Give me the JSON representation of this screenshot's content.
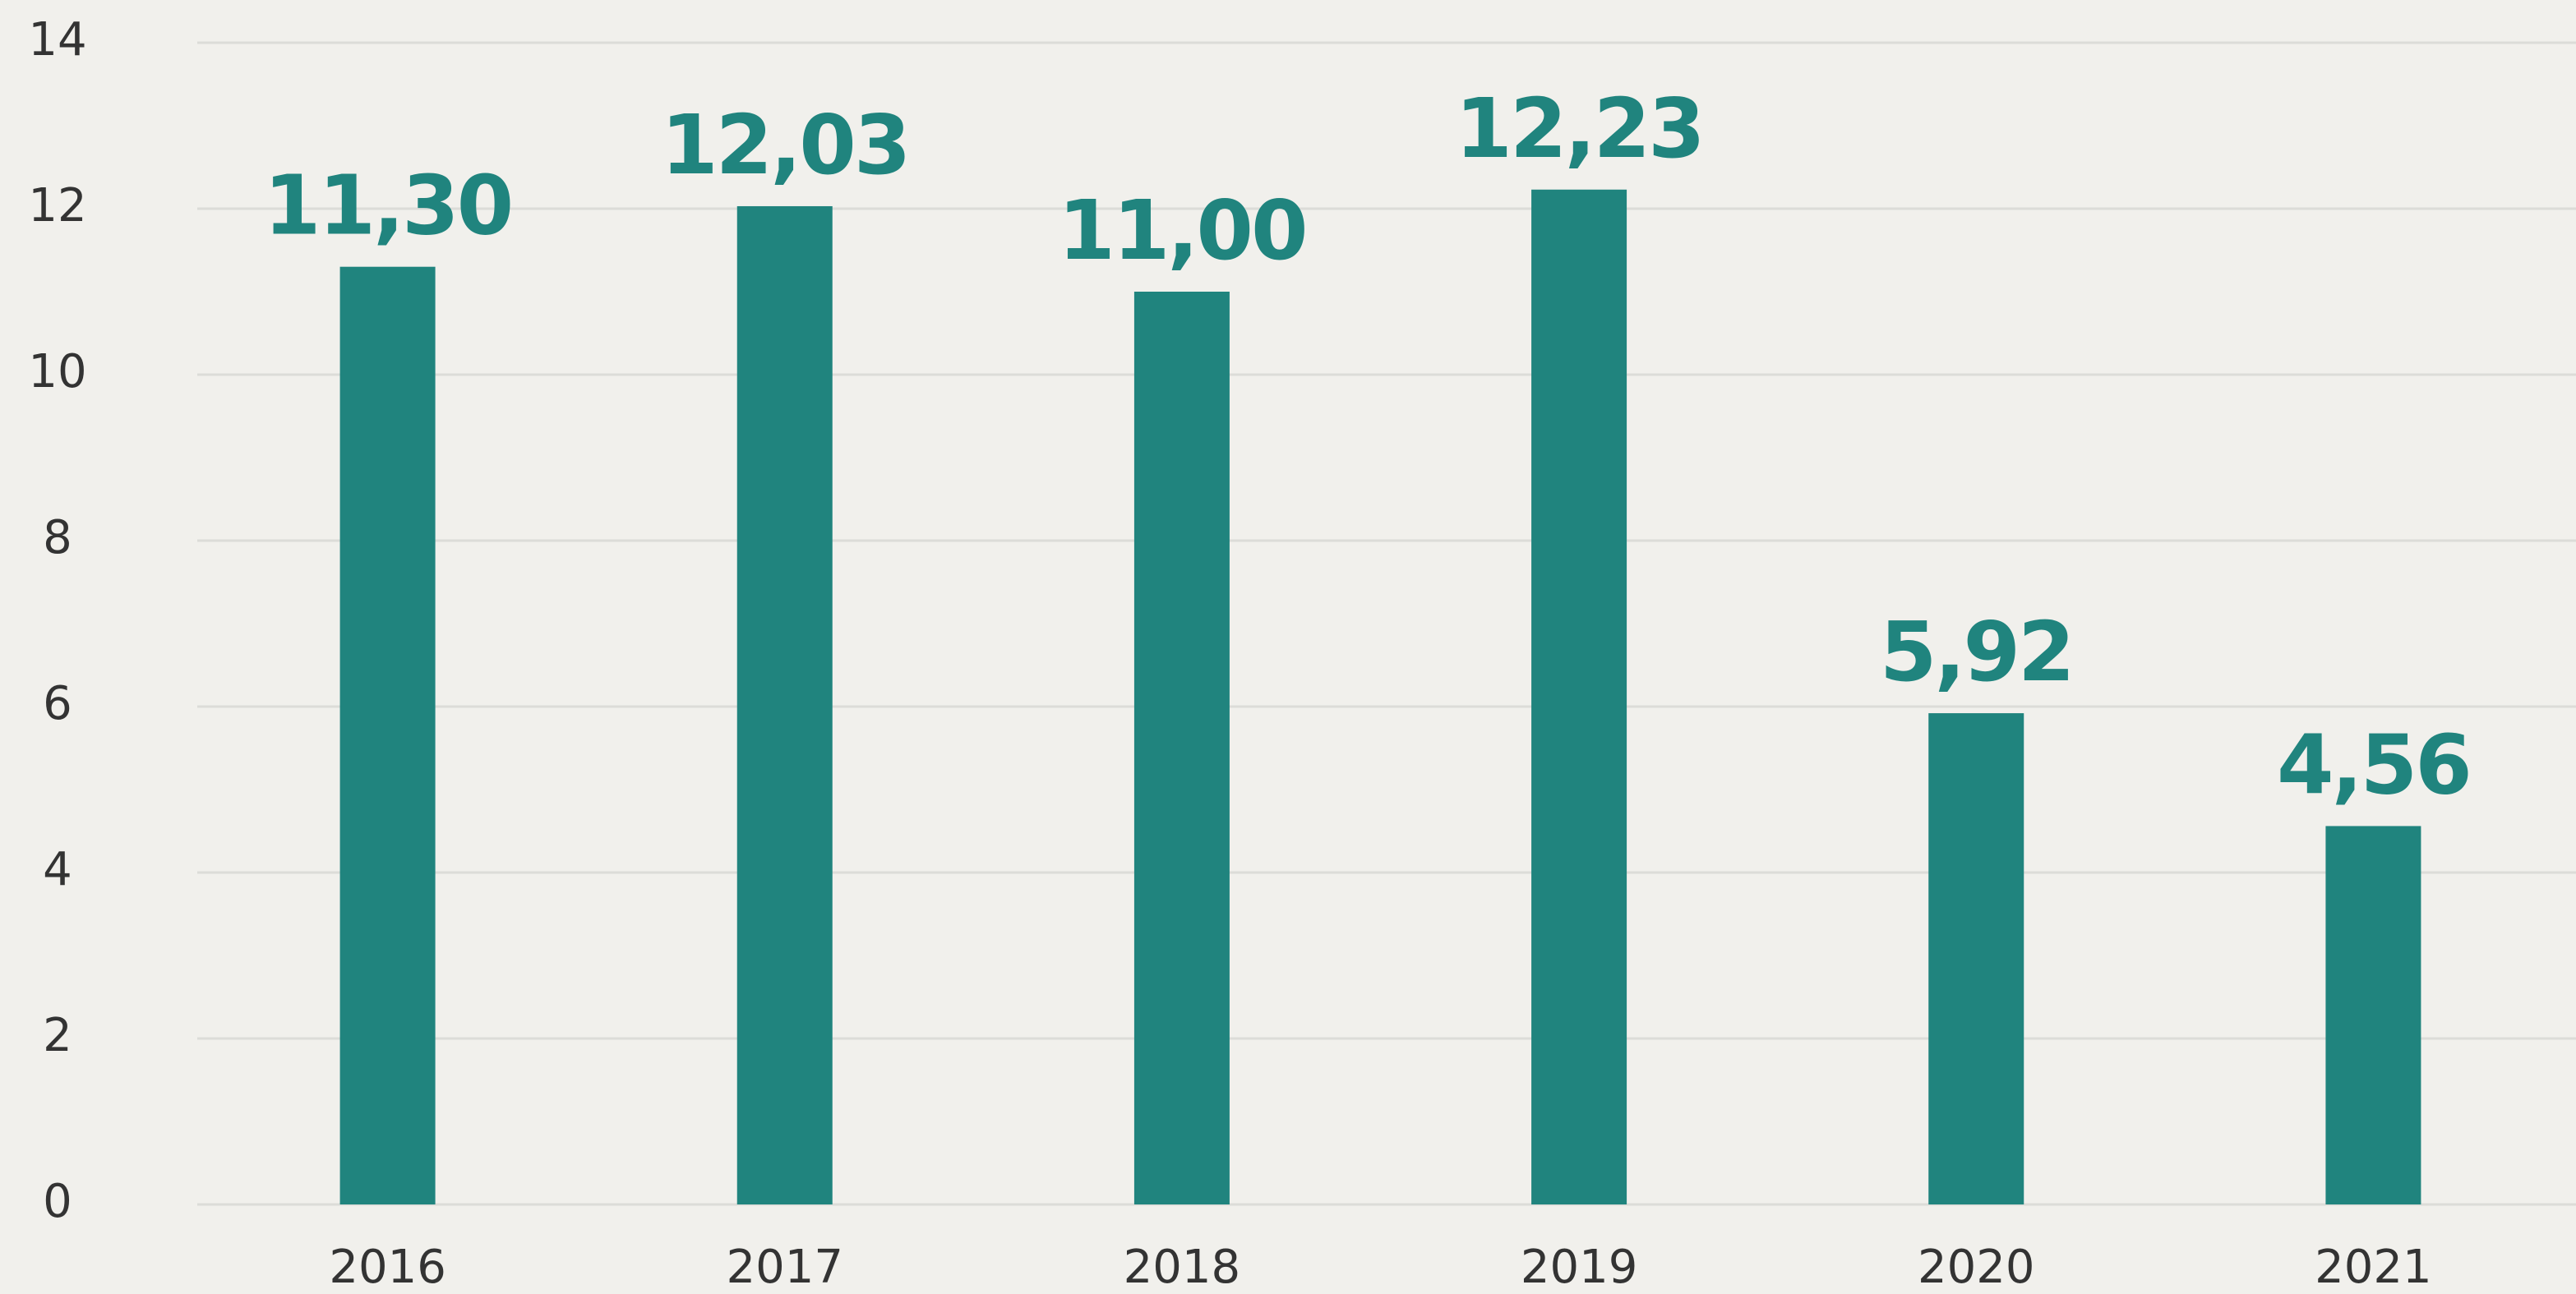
{
  "chart_data": {
    "type": "bar",
    "categories": [
      "2016",
      "2017",
      "2018",
      "2019",
      "2020",
      "2021"
    ],
    "values": [
      11.3,
      12.03,
      11.0,
      12.23,
      5.92,
      4.56
    ],
    "value_labels": [
      "11,30",
      "12,03",
      "11,00",
      "12,23",
      "5,92",
      "4,56"
    ],
    "color": "#20847e",
    "ylim": [
      0,
      14
    ],
    "yticks": [
      0,
      2,
      4,
      6,
      8,
      10,
      12,
      14
    ],
    "grid": true
  }
}
